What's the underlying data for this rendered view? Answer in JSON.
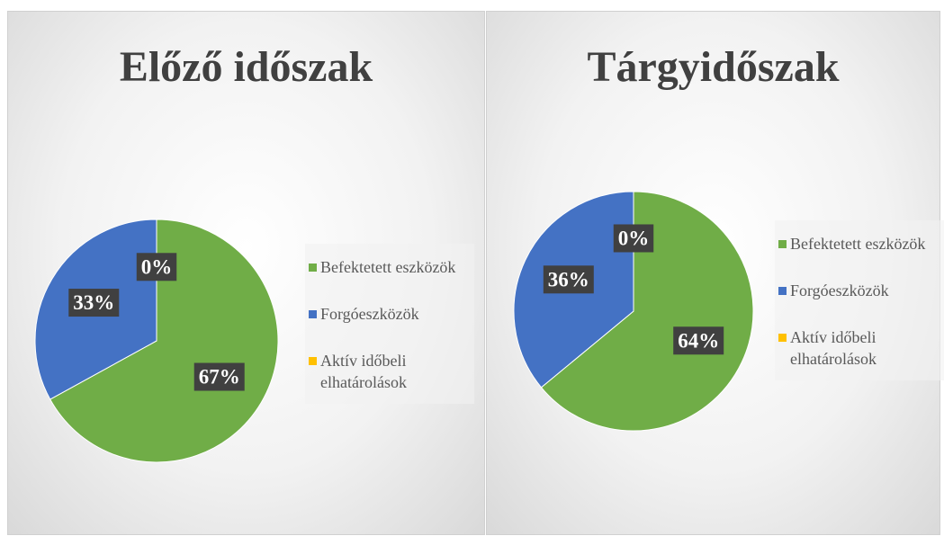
{
  "chart_data": [
    {
      "type": "pie",
      "title": "Előző időszak",
      "categories": [
        "Befektetett eszközök",
        "Forgóeszközök",
        "Aktív időbeli elhatárolások"
      ],
      "values": [
        67,
        33,
        0
      ],
      "value_labels": [
        "67%",
        "33%",
        "0%"
      ],
      "colors": [
        "#70ad47",
        "#4472c4",
        "#ffc000"
      ],
      "legend": "right"
    },
    {
      "type": "pie",
      "title": "Tárgyidőszak",
      "categories": [
        "Befektetett eszközök",
        "Forgóeszközök",
        "Aktív időbeli elhatárolások"
      ],
      "values": [
        64,
        36,
        0
      ],
      "value_labels": [
        "64%",
        "36%",
        "0%"
      ],
      "colors": [
        "#70ad47",
        "#4472c4",
        "#ffc000"
      ],
      "legend": "right"
    }
  ]
}
